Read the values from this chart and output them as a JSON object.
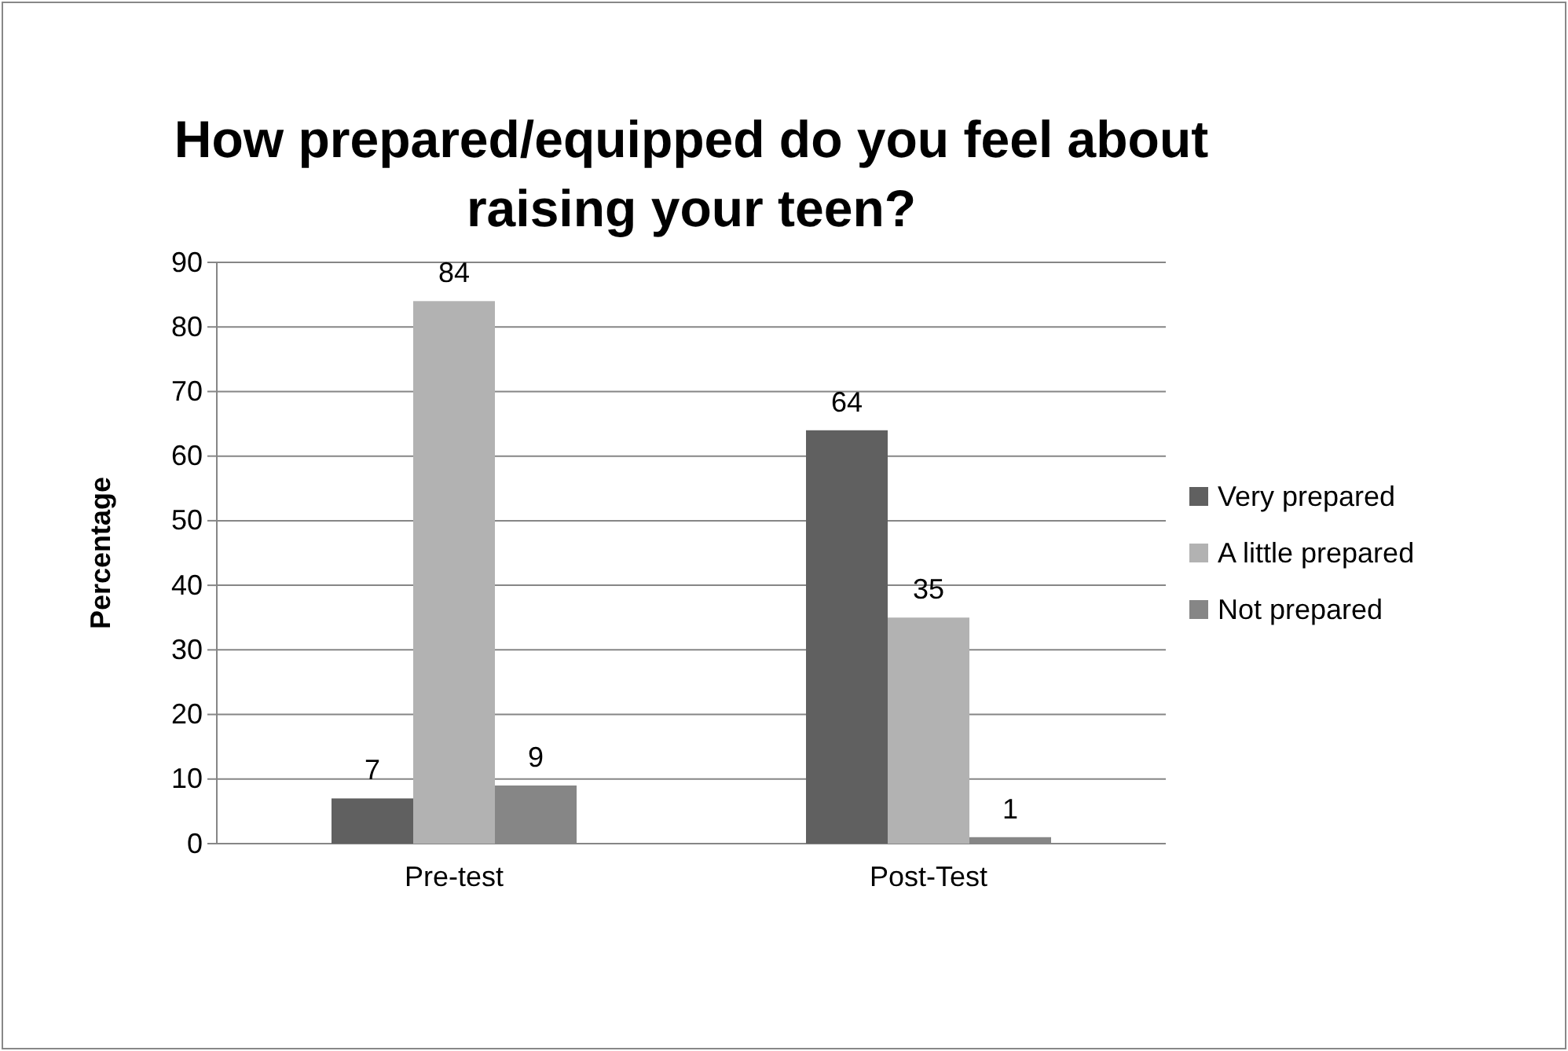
{
  "chart_data": {
    "type": "bar",
    "title": "How prepared/equipped do you feel about raising your teen?",
    "ylabel": "Percentage",
    "categories": [
      "Pre-test",
      "Post-Test"
    ],
    "series": [
      {
        "name": "Very prepared",
        "color": "#606060",
        "values": [
          7,
          64
        ]
      },
      {
        "name": "A little prepared",
        "color": "#b2b2b2",
        "values": [
          84,
          35
        ]
      },
      {
        "name": "Not prepared",
        "color": "#868686",
        "values": [
          9,
          1
        ]
      }
    ],
    "ylim": [
      0,
      90
    ],
    "yticks": [
      0,
      10,
      20,
      30,
      40,
      50,
      60,
      70,
      80,
      90
    ],
    "grid": "y",
    "legend": "right",
    "data_labels": true
  }
}
